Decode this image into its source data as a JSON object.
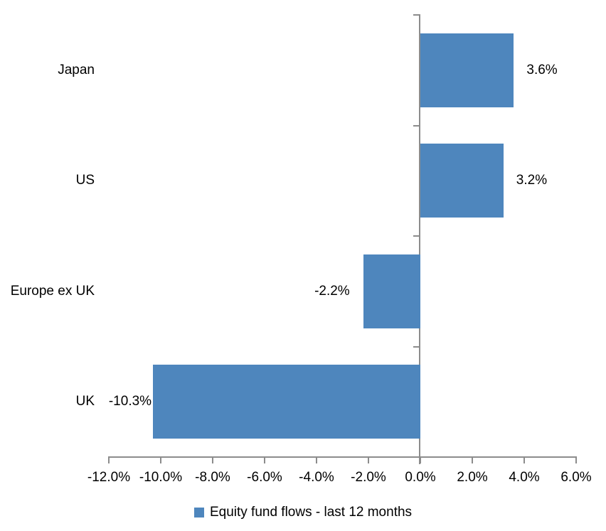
{
  "chart_data": {
    "type": "bar",
    "orientation": "horizontal",
    "title": "",
    "categories": [
      "Japan",
      "US",
      "Europe ex UK",
      "UK"
    ],
    "series": [
      {
        "name": "Equity fund flows - last 12 months",
        "values": [
          3.6,
          3.2,
          -2.2,
          -10.3
        ],
        "data_labels": [
          "3.6%",
          "3.2%",
          "-2.2%",
          "-10.3%"
        ]
      }
    ],
    "xlabel": "",
    "ylabel": "",
    "xlim": [
      -12.0,
      6.0
    ],
    "x_tick_values": [
      -12,
      -10,
      -8,
      -6,
      -4,
      -2,
      0,
      2,
      4,
      6
    ],
    "x_tick_labels": [
      "-12.0%",
      "-10.0%",
      "-8.0%",
      "-6.0%",
      "-4.0%",
      "-2.0%",
      "0.0%",
      "2.0%",
      "4.0%",
      "6.0%"
    ],
    "grid": false,
    "legend_position": "bottom",
    "legend_label": "Equity fund flows - last 12 months",
    "colors": {
      "bar": "#4E86BD",
      "axis": "#8C8C8C",
      "text": "#000000",
      "background": "#FFFFFF"
    }
  }
}
